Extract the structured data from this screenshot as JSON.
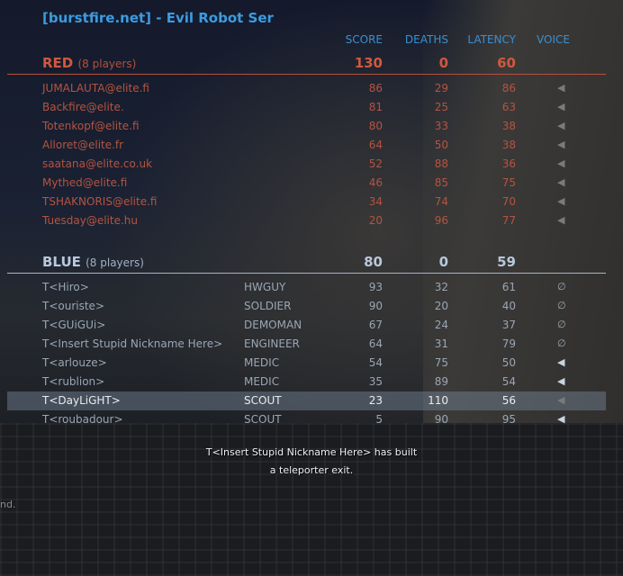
{
  "title": "[burstfire.net] - Evil Robot Ser",
  "columns": {
    "score": "SCORE",
    "deaths": "DEATHS",
    "latency": "LATENCY",
    "voice": "VOICE"
  },
  "colors": {
    "red": "#c8553d",
    "blue": "#a0b4cc",
    "title": "#3c9be0"
  },
  "red": {
    "name": "RED",
    "count": "(8 players)",
    "score": "130",
    "deaths": "0",
    "latency": "60",
    "players": [
      {
        "name": "JUMALAUTA@elite.fi",
        "score": "86",
        "deaths": "29",
        "latency": "86",
        "voice": "speaker-icon"
      },
      {
        "name": "Backfire@elite.",
        "score": "81",
        "deaths": "25",
        "latency": "63",
        "voice": "speaker-icon"
      },
      {
        "name": "Totenkopf@elite.fi",
        "score": "80",
        "deaths": "33",
        "latency": "38",
        "voice": "speaker-icon"
      },
      {
        "name": "Alloret@elite.fr",
        "score": "64",
        "deaths": "50",
        "latency": "38",
        "voice": "speaker-icon"
      },
      {
        "name": "saatana@elite.co.uk",
        "score": "52",
        "deaths": "88",
        "latency": "36",
        "voice": "speaker-icon"
      },
      {
        "name": "Mythed@elite.fi",
        "score": "46",
        "deaths": "85",
        "latency": "75",
        "voice": "speaker-icon"
      },
      {
        "name": "TSHAKNORIS@elite.fi",
        "score": "34",
        "deaths": "74",
        "latency": "70",
        "voice": "speaker-icon"
      },
      {
        "name": "Tuesday@elite.hu",
        "score": "20",
        "deaths": "96",
        "latency": "77",
        "voice": "speaker-icon"
      }
    ]
  },
  "blue": {
    "name": "BLUE",
    "count": "(8 players)",
    "score": "80",
    "deaths": "0",
    "latency": "59",
    "players": [
      {
        "name": "T<Hiro>",
        "class": "HWGUY",
        "score": "93",
        "deaths": "32",
        "latency": "61",
        "voice": "muted-icon"
      },
      {
        "name": "T<ouriste>",
        "class": "SOLDIER",
        "score": "90",
        "deaths": "20",
        "latency": "40",
        "voice": "muted-icon"
      },
      {
        "name": "T<GUiGUi>",
        "class": "DEMOMAN",
        "score": "67",
        "deaths": "24",
        "latency": "37",
        "voice": "muted-icon"
      },
      {
        "name": "T<Insert Stupid Nickname Here>",
        "class": "ENGINEER",
        "score": "64",
        "deaths": "31",
        "latency": "79",
        "voice": "muted-icon"
      },
      {
        "name": "T<arlouze>",
        "class": "MEDIC",
        "score": "54",
        "deaths": "75",
        "latency": "50",
        "voice": "speaker-active-icon"
      },
      {
        "name": "T<rublion>",
        "class": "MEDIC",
        "score": "35",
        "deaths": "89",
        "latency": "54",
        "voice": "speaker-active-icon"
      },
      {
        "name": "T<DayLiGHT>",
        "class": "SCOUT",
        "score": "23",
        "deaths": "110",
        "latency": "56",
        "voice": "speaker-icon",
        "highlighted": true
      },
      {
        "name": "T<roubadour>",
        "class": "SCOUT",
        "score": "5",
        "deaths": "90",
        "latency": "95",
        "voice": "speaker-active-icon"
      }
    ]
  },
  "message": {
    "line1": "T<Insert Stupid Nickname Here> has built",
    "line2": "a teleporter exit."
  },
  "chat_fragment": "nd."
}
